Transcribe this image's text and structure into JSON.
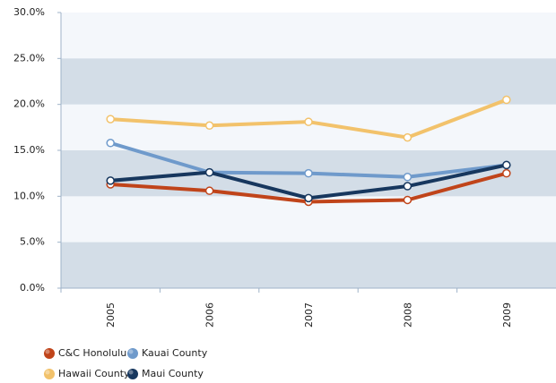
{
  "chart_data": {
    "type": "line",
    "categories": [
      "2005",
      "2006",
      "2007",
      "2008",
      "2009"
    ],
    "series": [
      {
        "name": "C&C Honolulu",
        "color": "#c0441a",
        "values": [
          11.3,
          10.6,
          9.4,
          9.6,
          12.5
        ]
      },
      {
        "name": "Kauai County",
        "color": "#6f9acb",
        "values": [
          15.8,
          12.6,
          12.5,
          12.1,
          13.4
        ]
      },
      {
        "name": "Hawaii County",
        "color": "#f2c26b",
        "values": [
          18.4,
          17.7,
          18.1,
          16.4,
          20.5
        ]
      },
      {
        "name": "Maui County",
        "color": "#17375e",
        "values": [
          11.7,
          12.6,
          9.8,
          11.1,
          13.4
        ]
      }
    ],
    "ylim": [
      0,
      30
    ],
    "yticks": [
      {
        "value": 0,
        "label": "0.0%"
      },
      {
        "value": 5,
        "label": "5.0%"
      },
      {
        "value": 10,
        "label": "10.0%"
      },
      {
        "value": 15,
        "label": "15.0%"
      },
      {
        "value": 20,
        "label": "20.0%"
      },
      {
        "value": 25,
        "label": "25.0%"
      },
      {
        "value": 30,
        "label": "30.0%"
      }
    ],
    "grid": true
  }
}
